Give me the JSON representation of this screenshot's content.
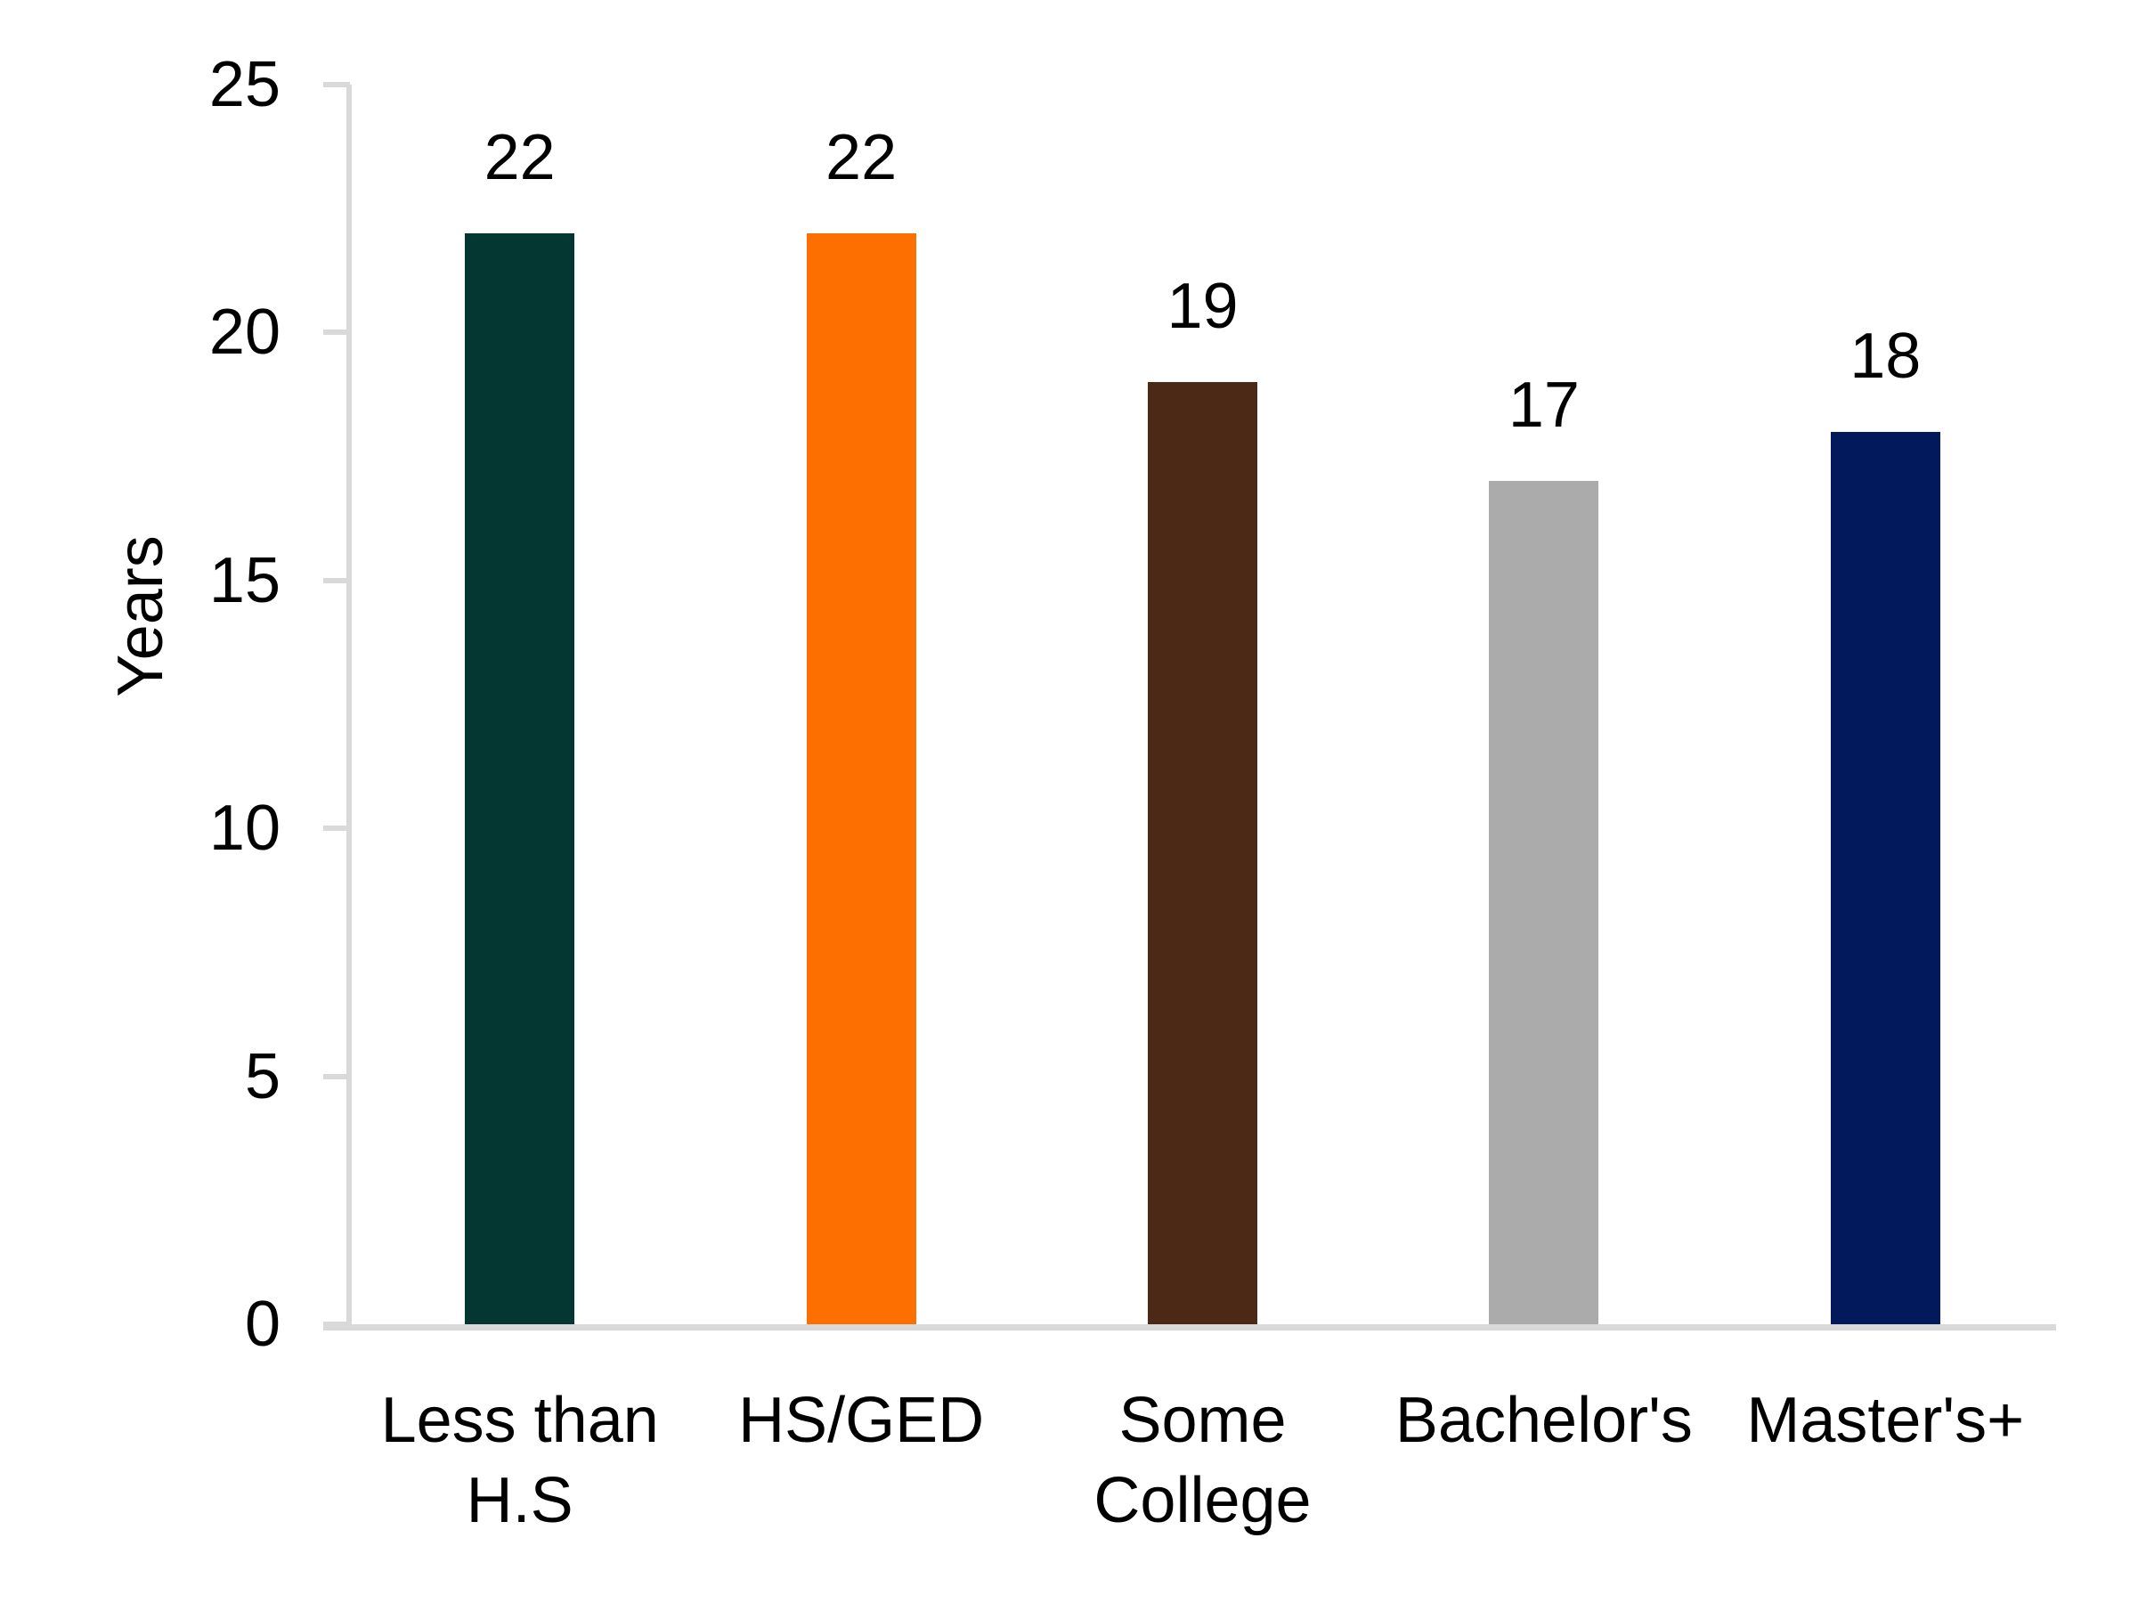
{
  "chart_data": {
    "type": "bar",
    "title": "",
    "xlabel": "",
    "ylabel": "Years",
    "categories": [
      "Less than H.S",
      "HS/GED",
      "Some College",
      "Bachelor's",
      "Master's+"
    ],
    "categories_wrapped": [
      [
        "Less than",
        "H.S"
      ],
      [
        "HS/GED"
      ],
      [
        "Some",
        "College"
      ],
      [
        "Bachelor's"
      ],
      [
        "Master's+"
      ]
    ],
    "values": [
      22,
      22,
      19,
      17,
      18
    ],
    "data_labels": [
      "22",
      "22",
      "19",
      "17",
      "18"
    ],
    "bar_colors": [
      "#053732",
      "#FD7000",
      "#4C2817",
      "#ABABAB",
      "#02195C"
    ],
    "yticks": [
      0,
      5,
      10,
      15,
      20,
      25
    ],
    "ylim": [
      0,
      25
    ],
    "grid": false,
    "legend": false,
    "axis_color": "#D9D9D9",
    "text_color": "#000000",
    "background": "#FFFFFF"
  }
}
